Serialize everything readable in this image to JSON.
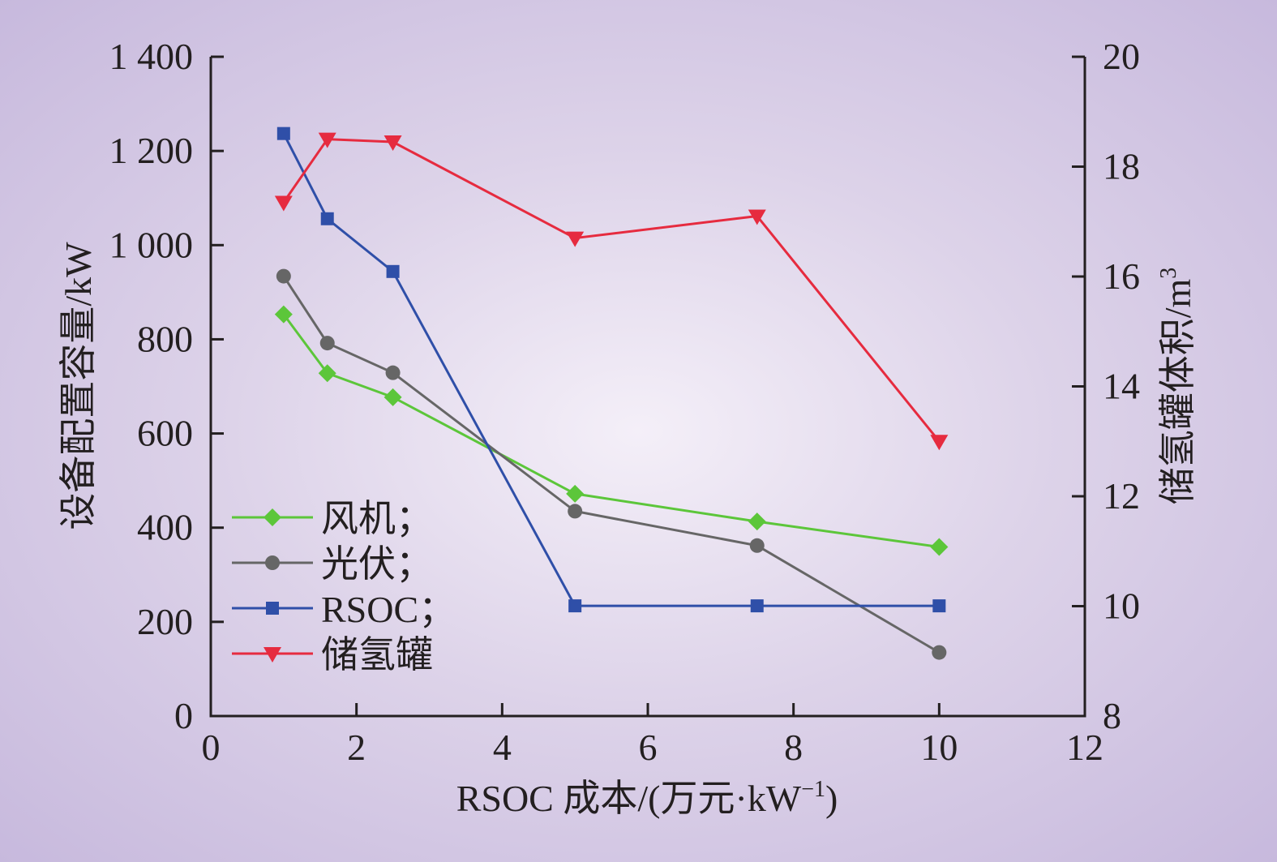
{
  "chart_data": {
    "type": "line",
    "xlabel": "RSOC 成本/(万元·kW",
    "xlabel_sup": "−1",
    "xlabel_end": ")",
    "ylabel": "设备配置容量/kW",
    "y2label": "储氢罐体积/m",
    "y2label_sup": "3",
    "xlim": [
      0,
      12
    ],
    "ylim": [
      0,
      1400
    ],
    "y2lim": [
      8,
      20
    ],
    "x_ticks": [
      "0",
      "2",
      "4",
      "6",
      "8",
      "10",
      "12"
    ],
    "y_ticks": [
      "0",
      "200",
      "400",
      "600",
      "800",
      "1 000",
      "1 200",
      "1 400"
    ],
    "y2_ticks": [
      "8",
      "10",
      "12",
      "14",
      "16",
      "18",
      "20"
    ],
    "x": [
      1,
      1.6,
      2.5,
      5,
      7.5,
      10
    ],
    "series": [
      {
        "name": "风机；",
        "axis": "left",
        "marker": "diamond",
        "color": "#5cc63a",
        "values": [
          853,
          728,
          677,
          472,
          413,
          359
        ]
      },
      {
        "name": "光伏；",
        "axis": "left",
        "marker": "circle",
        "color": "#666666",
        "values": [
          934,
          792,
          729,
          435,
          362,
          135
        ]
      },
      {
        "name": "RSOC；",
        "axis": "left",
        "marker": "square",
        "color": "#2f4fa8",
        "values": [
          1237,
          1056,
          944,
          234,
          234,
          234
        ]
      },
      {
        "name": "储氢罐",
        "axis": "right",
        "marker": "triangle-down",
        "color": "#e62b3f",
        "values": [
          17.35,
          18.5,
          18.45,
          16.7,
          17.1,
          13.0
        ]
      }
    ],
    "legend_position": "bottom-left",
    "grid": false
  }
}
